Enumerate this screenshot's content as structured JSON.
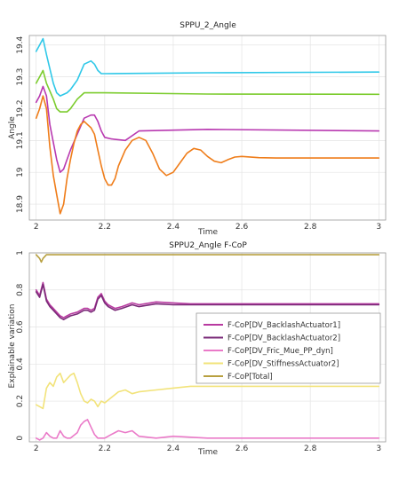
{
  "chart_data": [
    {
      "type": "line",
      "title": "SPPU_2_Angle",
      "xlabel": "Time",
      "ylabel": "Angle",
      "xlim": [
        1.98,
        3.02
      ],
      "ylim": [
        18.85,
        19.43
      ],
      "x_ticks": [
        "2",
        "2.2",
        "2.4",
        "2.6",
        "2.8",
        "3"
      ],
      "y_ticks": [
        "18.9",
        "19",
        "19.1",
        "19.2",
        "19.3",
        "19.4"
      ],
      "grid": true,
      "series": [
        {
          "color": "#2fc8e8",
          "x": [
            2.0,
            2.01,
            2.02,
            2.03,
            2.05,
            2.06,
            2.07,
            2.09,
            2.1,
            2.12,
            2.14,
            2.16,
            2.17,
            2.18,
            2.19,
            2.2,
            2.3,
            2.5,
            3.0
          ],
          "y": [
            19.38,
            19.4,
            19.42,
            19.37,
            19.28,
            19.25,
            19.24,
            19.25,
            19.26,
            19.29,
            19.34,
            19.35,
            19.34,
            19.32,
            19.31,
            19.31,
            19.311,
            19.313,
            19.315
          ]
        },
        {
          "color": "#7ccc2e",
          "x": [
            2.0,
            2.01,
            2.02,
            2.03,
            2.05,
            2.06,
            2.07,
            2.09,
            2.1,
            2.12,
            2.14,
            2.15,
            2.2,
            2.5,
            3.0
          ],
          "y": [
            19.28,
            19.3,
            19.32,
            19.28,
            19.23,
            19.2,
            19.19,
            19.19,
            19.2,
            19.23,
            19.25,
            19.25,
            19.25,
            19.246,
            19.245
          ]
        },
        {
          "color": "#b838b0",
          "x": [
            2.0,
            2.01,
            2.02,
            2.03,
            2.04,
            2.06,
            2.07,
            2.08,
            2.09,
            2.1,
            2.12,
            2.14,
            2.16,
            2.17,
            2.18,
            2.19,
            2.2,
            2.22,
            2.26,
            2.3,
            2.5,
            3.0
          ],
          "y": [
            19.22,
            19.24,
            19.27,
            19.24,
            19.15,
            19.04,
            19.0,
            19.01,
            19.04,
            19.07,
            19.12,
            19.17,
            19.18,
            19.18,
            19.16,
            19.13,
            19.11,
            19.105,
            19.1,
            19.13,
            19.135,
            19.13
          ]
        },
        {
          "color": "#ef7d1a",
          "x": [
            2.0,
            2.01,
            2.02,
            2.03,
            2.04,
            2.05,
            2.06,
            2.07,
            2.08,
            2.09,
            2.1,
            2.11,
            2.12,
            2.13,
            2.14,
            2.15,
            2.16,
            2.17,
            2.18,
            2.19,
            2.2,
            2.21,
            2.22,
            2.23,
            2.24,
            2.26,
            2.28,
            2.3,
            2.32,
            2.34,
            2.36,
            2.38,
            2.4,
            2.42,
            2.44,
            2.46,
            2.48,
            2.5,
            2.52,
            2.54,
            2.56,
            2.58,
            2.6,
            2.65,
            2.7,
            3.0
          ],
          "y": [
            19.17,
            19.2,
            19.24,
            19.2,
            19.08,
            18.99,
            18.93,
            18.87,
            18.9,
            18.98,
            19.04,
            19.09,
            19.13,
            19.15,
            19.16,
            19.15,
            19.14,
            19.12,
            19.07,
            19.02,
            18.98,
            18.96,
            18.96,
            18.98,
            19.02,
            19.07,
            19.1,
            19.11,
            19.1,
            19.06,
            19.01,
            18.99,
            19.0,
            19.03,
            19.06,
            19.075,
            19.07,
            19.05,
            19.035,
            19.03,
            19.04,
            19.048,
            19.05,
            19.046,
            19.045,
            19.045
          ]
        }
      ]
    },
    {
      "type": "line",
      "title": "SPPU2_Angle F-CoP",
      "xlabel": "Time",
      "ylabel": "Explainable variation",
      "xlim": [
        1.98,
        3.02
      ],
      "ylim": [
        -0.02,
        1.0
      ],
      "x_ticks": [
        "2",
        "2.2",
        "2.4",
        "2.6",
        "2.8",
        "3"
      ],
      "y_ticks": [
        "0",
        "0.2",
        "0.4",
        "0.6",
        "0.8",
        "1"
      ],
      "grid": true,
      "legend_position": "center-right",
      "series": [
        {
          "name": "F-CoP[DV_BacklashActuator1]",
          "color": "#b83aa0",
          "x": [
            2.0,
            2.01,
            2.02,
            2.03,
            2.04,
            2.05,
            2.06,
            2.07,
            2.08,
            2.09,
            2.1,
            2.12,
            2.13,
            2.14,
            2.15,
            2.16,
            2.17,
            2.18,
            2.19,
            2.2,
            2.21,
            2.23,
            2.25,
            2.28,
            2.3,
            2.35,
            2.4,
            2.45,
            2.5,
            2.6,
            3.0
          ],
          "y": [
            0.8,
            0.77,
            0.84,
            0.75,
            0.72,
            0.7,
            0.68,
            0.66,
            0.65,
            0.66,
            0.67,
            0.68,
            0.69,
            0.7,
            0.7,
            0.69,
            0.7,
            0.76,
            0.78,
            0.74,
            0.72,
            0.7,
            0.71,
            0.73,
            0.72,
            0.735,
            0.73,
            0.725,
            0.725,
            0.725,
            0.725
          ]
        },
        {
          "name": "F-CoP[DV_BacklashActuator2]",
          "color": "#7a2a78",
          "x": [
            2.0,
            2.01,
            2.02,
            2.03,
            2.04,
            2.05,
            2.06,
            2.07,
            2.08,
            2.09,
            2.1,
            2.12,
            2.13,
            2.14,
            2.15,
            2.16,
            2.17,
            2.18,
            2.19,
            2.2,
            2.21,
            2.23,
            2.25,
            2.28,
            2.3,
            2.35,
            2.4,
            2.45,
            2.5,
            2.6,
            3.0
          ],
          "y": [
            0.79,
            0.76,
            0.83,
            0.74,
            0.71,
            0.69,
            0.67,
            0.65,
            0.64,
            0.65,
            0.66,
            0.67,
            0.68,
            0.69,
            0.69,
            0.68,
            0.69,
            0.75,
            0.77,
            0.73,
            0.71,
            0.69,
            0.7,
            0.72,
            0.71,
            0.725,
            0.72,
            0.72,
            0.72,
            0.72,
            0.72
          ]
        },
        {
          "name": "F-CoP[DV_Fric_Mue_PP_dyn]",
          "color": "#ea7ac8",
          "x": [
            2.0,
            2.01,
            2.02,
            2.03,
            2.04,
            2.05,
            2.06,
            2.07,
            2.08,
            2.09,
            2.1,
            2.12,
            2.13,
            2.14,
            2.15,
            2.16,
            2.17,
            2.18,
            2.2,
            2.22,
            2.24,
            2.26,
            2.28,
            2.3,
            2.35,
            2.4,
            2.5,
            3.0
          ],
          "y": [
            0.0,
            -0.01,
            0.0,
            0.03,
            0.01,
            0.0,
            0.0,
            0.04,
            0.01,
            0.0,
            0.0,
            0.03,
            0.07,
            0.09,
            0.1,
            0.06,
            0.02,
            0.0,
            0.0,
            0.02,
            0.04,
            0.03,
            0.04,
            0.01,
            0.0,
            0.01,
            0.0,
            0.0
          ]
        },
        {
          "name": "F-CoP[DV_StiffnessActuator2]",
          "color": "#f2e37a",
          "x": [
            2.0,
            2.01,
            2.02,
            2.03,
            2.04,
            2.05,
            2.06,
            2.07,
            2.08,
            2.09,
            2.1,
            2.11,
            2.12,
            2.13,
            2.14,
            2.15,
            2.16,
            2.17,
            2.18,
            2.19,
            2.2,
            2.22,
            2.24,
            2.26,
            2.28,
            2.3,
            2.35,
            2.4,
            2.45,
            2.5,
            2.6,
            3.0
          ],
          "y": [
            0.18,
            0.17,
            0.16,
            0.27,
            0.3,
            0.28,
            0.33,
            0.35,
            0.3,
            0.32,
            0.34,
            0.35,
            0.3,
            0.24,
            0.2,
            0.19,
            0.21,
            0.2,
            0.17,
            0.2,
            0.19,
            0.22,
            0.25,
            0.26,
            0.24,
            0.25,
            0.26,
            0.27,
            0.28,
            0.28,
            0.28,
            0.28
          ]
        },
        {
          "name": "F-CoP[Total]",
          "color": "#b8a040",
          "x": [
            2.0,
            2.01,
            2.015,
            2.02,
            2.03,
            2.05,
            2.1,
            2.2,
            3.0
          ],
          "y": [
            0.99,
            0.97,
            0.95,
            0.97,
            0.99,
            0.99,
            0.99,
            0.99,
            0.99
          ]
        }
      ]
    }
  ]
}
